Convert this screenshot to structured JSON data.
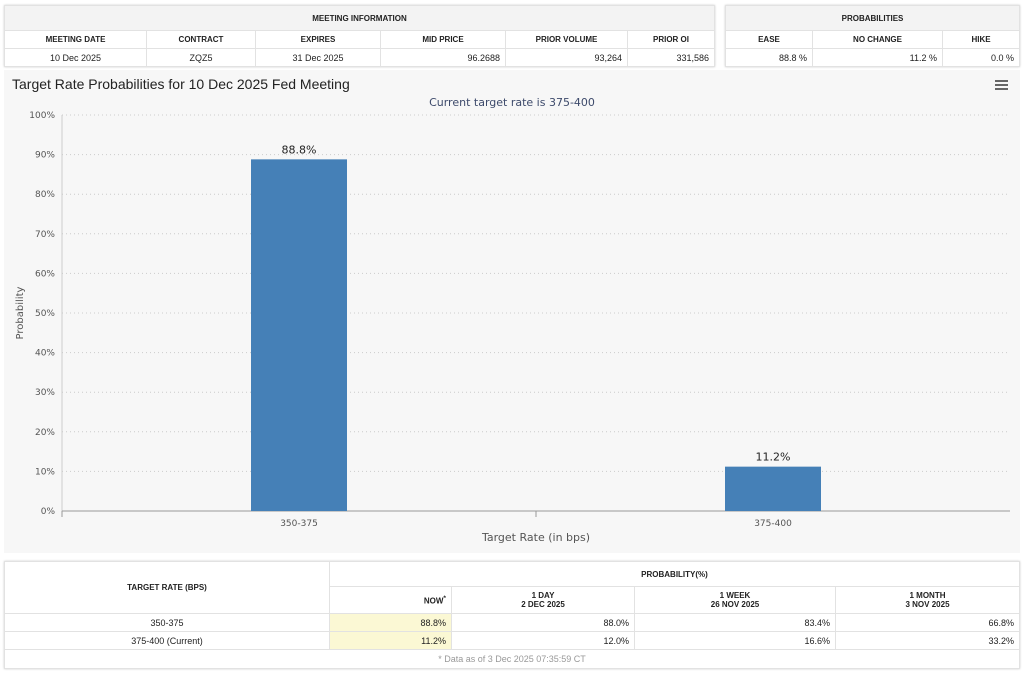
{
  "meeting_info": {
    "title": "MEETING INFORMATION",
    "columns": [
      "MEETING DATE",
      "CONTRACT",
      "EXPIRES",
      "MID PRICE",
      "PRIOR VOLUME",
      "PRIOR OI"
    ],
    "values": [
      "10 Dec 2025",
      "ZQZ5",
      "31 Dec 2025",
      "96.2688",
      "93,264",
      "331,586"
    ]
  },
  "probabilities": {
    "title": "PROBABILITIES",
    "columns": [
      "EASE",
      "NO CHANGE",
      "HIKE"
    ],
    "values": [
      "88.8 %",
      "11.2 %",
      "0.0 %"
    ]
  },
  "chart": {
    "title": "Target Rate Probabilities for 10 Dec 2025 Fed Meeting",
    "subtitle": "Current target rate is 375-400",
    "menu_icon": "hamburger-menu-icon"
  },
  "chart_data": {
    "type": "bar",
    "categories": [
      "350-375",
      "375-400"
    ],
    "values": [
      88.8,
      11.2
    ],
    "data_labels": [
      "88.8%",
      "11.2%"
    ],
    "xlabel": "Target Rate (in bps)",
    "ylabel": "Probability",
    "ylim": [
      0,
      100
    ],
    "yticks": [
      "0%",
      "10%",
      "20%",
      "30%",
      "40%",
      "50%",
      "60%",
      "70%",
      "80%",
      "90%",
      "100%"
    ],
    "grid": true,
    "bar_color": "#4580b7"
  },
  "bottom": {
    "target_header": "TARGET RATE (BPS)",
    "prob_header": "PROBABILITY(%)",
    "columns": [
      {
        "l1": "NOW",
        "sup": "*"
      },
      {
        "l1": "1 DAY",
        "l2": "2 DEC 2025"
      },
      {
        "l1": "1 WEEK",
        "l2": "26 NOV 2025"
      },
      {
        "l1": "1 MONTH",
        "l2": "3 NOV 2025"
      }
    ],
    "rows": [
      {
        "rate": "350-375",
        "vals": [
          "88.8%",
          "88.0%",
          "83.4%",
          "66.8%"
        ]
      },
      {
        "rate": "375-400 (Current)",
        "vals": [
          "11.2%",
          "12.0%",
          "16.6%",
          "33.2%"
        ]
      }
    ],
    "footnote": "* Data as of 3 Dec 2025 07:35:59 CT"
  }
}
